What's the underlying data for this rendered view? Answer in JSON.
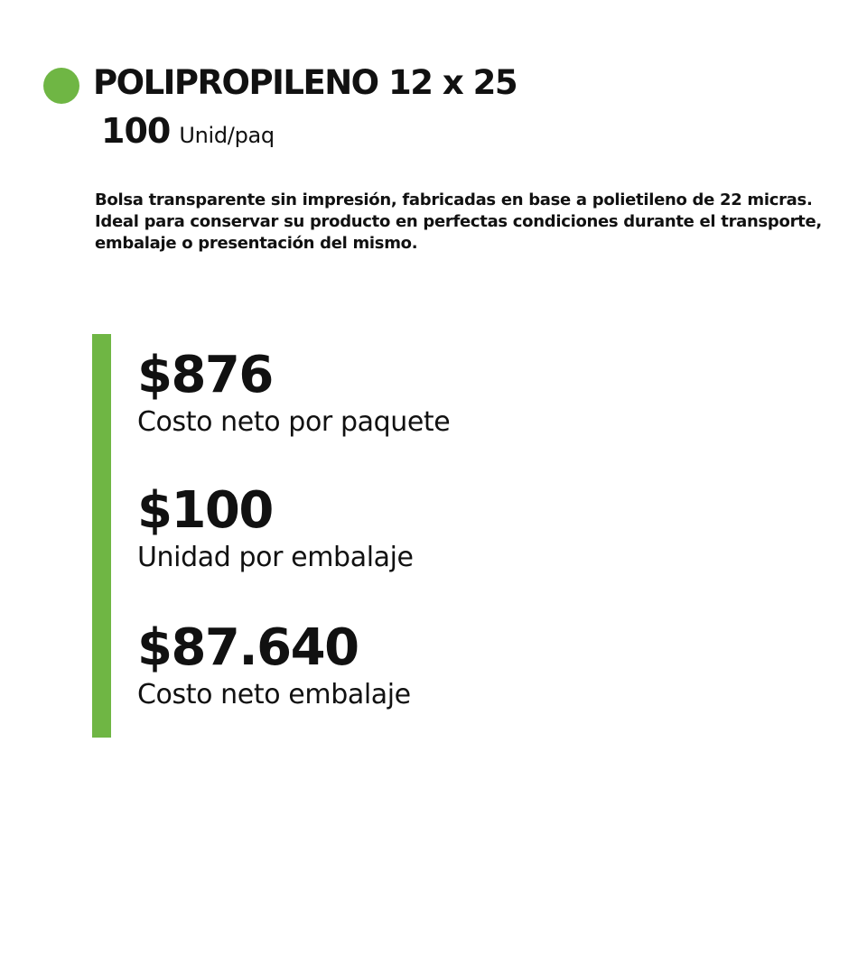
{
  "colors": {
    "accent": "#6fb644",
    "text": "#111111",
    "background": "#ffffff"
  },
  "product": {
    "title": "POLIPROPILENO 12 x 25",
    "units_per_pack": "100",
    "units_label": "Unid/paq",
    "description_lines": [
      "Bolsa transparente sin impresión, fabricadas en base a polietileno de 22 micras.",
      "Ideal para conservar su producto en perfectas condiciones durante el transporte,",
      "embalaje o presentación del mismo."
    ]
  },
  "pricing": [
    {
      "value": "$876",
      "label": "Costo neto por paquete"
    },
    {
      "value": "$100",
      "label": "Unidad por embalaje"
    },
    {
      "value": "$87.640",
      "label": "Costo neto embalaje"
    }
  ]
}
